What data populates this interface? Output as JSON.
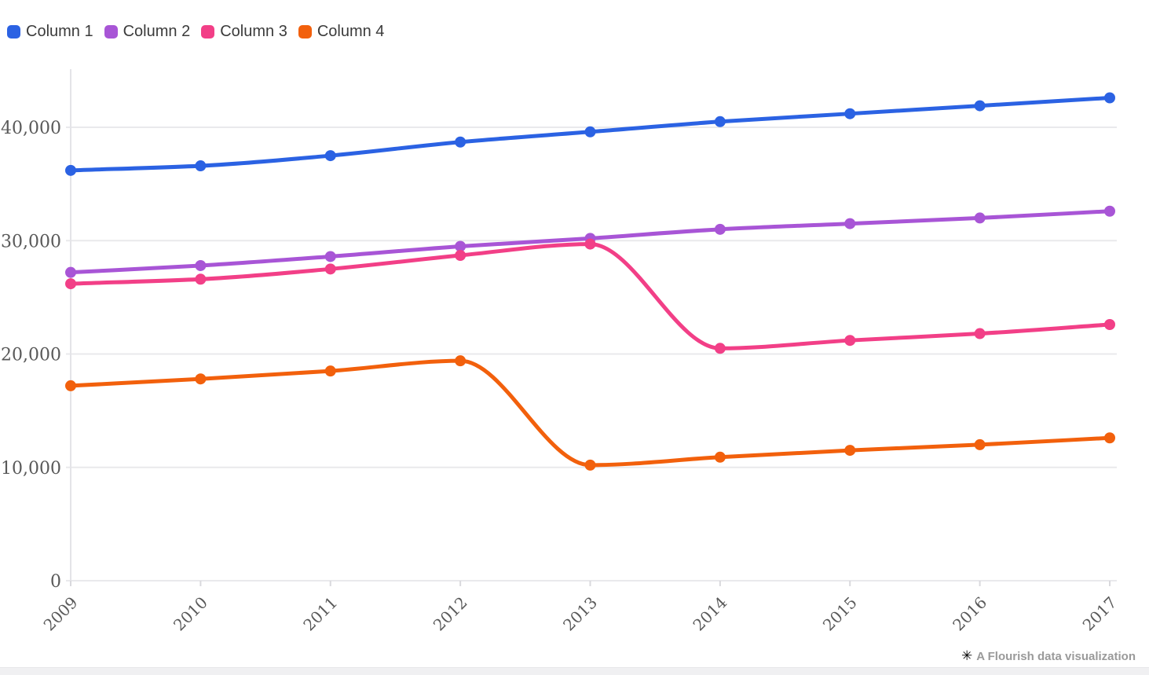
{
  "legend": {
    "items": [
      {
        "label": "Column 1",
        "color": "#2B62E3"
      },
      {
        "label": "Column 2",
        "color": "#A855D6"
      },
      {
        "label": "Column 3",
        "color": "#F23F87"
      },
      {
        "label": "Column 4",
        "color": "#F2600C"
      }
    ]
  },
  "attribution": {
    "icon_glyph": "✳",
    "text": "A Flourish data visualization"
  },
  "colors": {
    "background": "#FFFFFF",
    "grid": "#E9E9EC",
    "axis_line": "#E4E4E8",
    "tick_mark": "#D9D9DD",
    "tick_text": "#595959",
    "legend_text": "#3B3B3B",
    "attribution_text": "#9A9A9A",
    "attribution_icon": "#000000",
    "bottom_bar": "#F0F0F2"
  },
  "chart_data": {
    "type": "line",
    "title": "",
    "xlabel": "",
    "ylabel": "",
    "categories": [
      "2009",
      "2010",
      "2011",
      "2012",
      "2013",
      "2014",
      "2015",
      "2016",
      "2017"
    ],
    "series": [
      {
        "name": "Column 1",
        "color": "#2B62E3",
        "values": [
          36200,
          36600,
          37500,
          38700,
          39600,
          40500,
          41200,
          41900,
          42600
        ]
      },
      {
        "name": "Column 2",
        "color": "#A855D6",
        "values": [
          27200,
          27800,
          28600,
          29500,
          30200,
          31000,
          31500,
          32000,
          32600
        ]
      },
      {
        "name": "Column 3",
        "color": "#F23F87",
        "values": [
          26200,
          26600,
          27500,
          28700,
          29700,
          20500,
          21200,
          21800,
          22600
        ]
      },
      {
        "name": "Column 4",
        "color": "#F2600C",
        "values": [
          17200,
          17800,
          18500,
          19400,
          10200,
          10900,
          11500,
          12000,
          12600
        ]
      }
    ],
    "ylim": [
      0,
      45000
    ],
    "y_ticks": [
      0,
      10000,
      20000,
      30000,
      40000
    ],
    "y_tick_labels": [
      "0",
      "10,000",
      "20,000",
      "30,000",
      "40,000"
    ],
    "grid": "horizontal",
    "legend_position": "top-left",
    "curve": "monotone",
    "line_width": 5,
    "point_radius": 7
  }
}
